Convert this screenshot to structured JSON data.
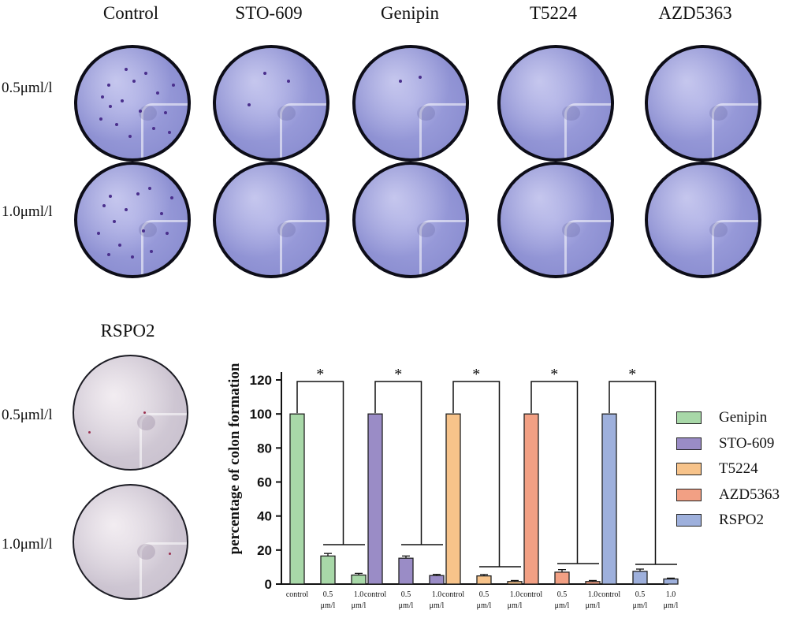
{
  "panel": {
    "column_labels": [
      "Control",
      "STO-609",
      "Genipin",
      "T5224",
      "AZD5363"
    ],
    "row_labels": [
      "0.5μml/l",
      "1.0μml/l"
    ],
    "rspo_title": "RSPO2",
    "rspo_row_labels": [
      "0.5μml/l",
      "1.0μml/l"
    ]
  },
  "colors": {
    "Genipin": "#a8d8a8",
    "STO-609": "#9a8cc6",
    "T5224": "#f7c38a",
    "AZD5363": "#f2a084",
    "RSPO2": "#9eb0dc"
  },
  "chart_data": {
    "type": "bar",
    "ylabel": "percentage of colon formation",
    "ylim": [
      0,
      120
    ],
    "yticks": [
      0,
      20,
      40,
      60,
      80,
      100,
      120
    ],
    "categories": [
      "control",
      "0.5 μm/l",
      "1.0 μm/l"
    ],
    "significance_marker": "*",
    "groups": [
      {
        "name": "Genipin",
        "values": [
          100,
          16.5,
          5.3
        ],
        "errors": [
          0,
          1.5,
          1.0
        ]
      },
      {
        "name": "STO-609",
        "values": [
          100,
          15.2,
          5.0
        ],
        "errors": [
          0,
          1.3,
          0.7
        ]
      },
      {
        "name": "T5224",
        "values": [
          100,
          4.8,
          1.5
        ],
        "errors": [
          0,
          0.8,
          0.6
        ]
      },
      {
        "name": "AZD5363",
        "values": [
          100,
          7.0,
          1.5
        ],
        "errors": [
          0,
          1.5,
          0.6
        ]
      },
      {
        "name": "RSPO2",
        "values": [
          100,
          7.5,
          3.0
        ],
        "errors": [
          0,
          1.3,
          0.5
        ]
      }
    ],
    "legend": [
      "Genipin",
      "STO-609",
      "T5224",
      "AZD5363",
      "RSPO2"
    ]
  }
}
